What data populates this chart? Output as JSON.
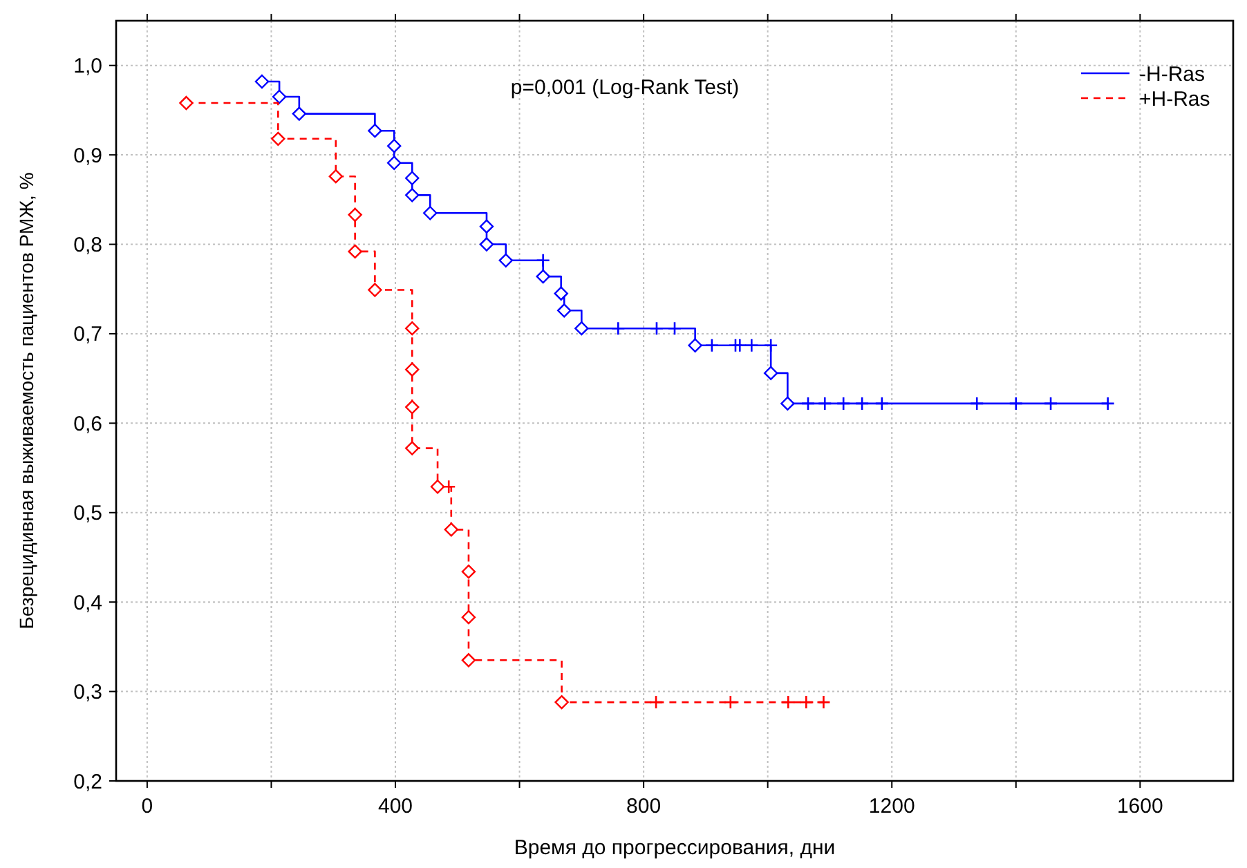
{
  "chart_data": {
    "type": "step",
    "xlabel": "Время до прогрессирования, дни",
    "ylabel": "Безрецидивная выживаемость пациентов РМЖ, %",
    "annotations": [
      "p=0,001 (Log-Rank Test)"
    ],
    "xlim": [
      -50,
      1750
    ],
    "ylim": [
      0.2,
      1.05
    ],
    "xticks": [
      0,
      {
        "value": 200,
        "label": null
      },
      400,
      {
        "value": 600,
        "label": null
      },
      800,
      {
        "value": 1000,
        "label": null
      },
      1200,
      {
        "value": 1400,
        "label": null
      },
      1600
    ],
    "yticks": [
      {
        "value": 0.2,
        "label": "0,2"
      },
      {
        "value": 0.3,
        "label": "0,3"
      },
      {
        "value": 0.4,
        "label": "0,4"
      },
      {
        "value": 0.5,
        "label": "0,5"
      },
      {
        "value": 0.6,
        "label": "0,6"
      },
      {
        "value": 0.7,
        "label": "0,7"
      },
      {
        "value": 0.8,
        "label": "0,8"
      },
      {
        "value": 0.9,
        "label": "0,9"
      },
      {
        "value": 1.0,
        "label": "1,0"
      }
    ],
    "grid": true,
    "legend": "top right",
    "series": [
      {
        "name": "-H-Ras",
        "color": "#0000ff",
        "line_style": "solid",
        "marker": "none",
        "x": [
          185,
          213,
          245,
          367,
          398,
          398,
          427,
          427,
          456,
          547,
          547,
          578,
          638,
          638,
          667,
          672,
          700,
          759,
          821,
          850,
          883,
          910,
          948,
          955,
          974,
          1005,
          1005,
          1032,
          1065,
          1092,
          1122,
          1152,
          1184,
          1337,
          1400,
          1456,
          1548
        ],
        "values": [
          0.982,
          0.965,
          0.946,
          0.927,
          0.91,
          0.891,
          0.874,
          0.855,
          0.835,
          0.82,
          0.8,
          0.782,
          0.782,
          0.764,
          0.745,
          0.726,
          0.706,
          0.706,
          0.706,
          0.706,
          0.687,
          0.687,
          0.687,
          0.687,
          0.687,
          0.687,
          0.656,
          0.622,
          0.622,
          0.622,
          0.622,
          0.622,
          0.622,
          0.622,
          0.622,
          0.622,
          0.622
        ]
      },
      {
        "type": "scatter",
        "color": "#0000ff",
        "marker": "diamond",
        "x": [
          185,
          213,
          245,
          367,
          398,
          398,
          427,
          427,
          456,
          547,
          547,
          578,
          638,
          667,
          672,
          700,
          883,
          1005,
          1032
        ],
        "values": [
          0.982,
          0.965,
          0.946,
          0.927,
          0.91,
          0.891,
          0.874,
          0.855,
          0.835,
          0.82,
          0.8,
          0.782,
          0.764,
          0.745,
          0.726,
          0.706,
          0.687,
          0.656,
          0.622
        ]
      },
      {
        "type": "scatter",
        "color": "#0000ff",
        "marker": "cross",
        "x": [
          638,
          759,
          821,
          850,
          910,
          948,
          955,
          974,
          1005,
          1065,
          1092,
          1122,
          1152,
          1184,
          1337,
          1400,
          1456,
          1548
        ],
        "values": [
          0.782,
          0.706,
          0.706,
          0.706,
          0.687,
          0.687,
          0.687,
          0.687,
          0.687,
          0.622,
          0.622,
          0.622,
          0.622,
          0.622,
          0.622,
          0.622,
          0.622,
          0.622
        ]
      },
      {
        "name": "+H-Ras",
        "color": "#ff0000",
        "line_style": "dashed",
        "marker": "none",
        "x": [
          63,
          211,
          304,
          335,
          335,
          367,
          427,
          427,
          427,
          427,
          468,
          486,
          490,
          518,
          518,
          518,
          668,
          820,
          940,
          1033,
          1062,
          1090
        ],
        "values": [
          0.958,
          0.918,
          0.876,
          0.833,
          0.792,
          0.749,
          0.706,
          0.66,
          0.618,
          0.572,
          0.529,
          0.529,
          0.481,
          0.434,
          0.383,
          0.335,
          0.288,
          0.288,
          0.288,
          0.288,
          0.288,
          0.288
        ]
      },
      {
        "type": "scatter",
        "color": "#ff0000",
        "marker": "diamond",
        "x": [
          63,
          211,
          304,
          335,
          335,
          367,
          427,
          427,
          427,
          427,
          468,
          490,
          518,
          518,
          518,
          668
        ],
        "values": [
          0.958,
          0.918,
          0.876,
          0.833,
          0.792,
          0.749,
          0.706,
          0.66,
          0.618,
          0.572,
          0.529,
          0.481,
          0.434,
          0.383,
          0.335,
          0.288
        ]
      },
      {
        "type": "scatter",
        "color": "#ff0000",
        "marker": "cross",
        "x": [
          486,
          820,
          940,
          1033,
          1062,
          1090
        ],
        "values": [
          0.529,
          0.288,
          0.288,
          0.288,
          0.288,
          0.288
        ]
      }
    ]
  }
}
